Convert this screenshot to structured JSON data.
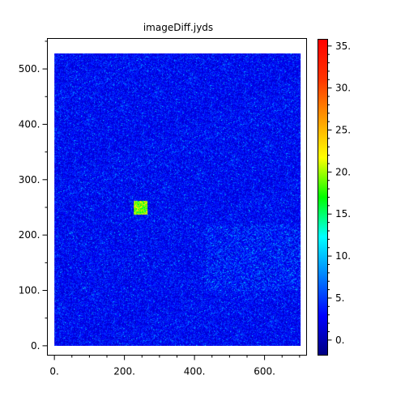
{
  "chart_data": {
    "type": "heatmap",
    "title": "imageDiff.jyds",
    "xlabel": "",
    "ylabel": "",
    "xlim": [
      -20,
      720
    ],
    "ylim": [
      -17,
      555
    ],
    "data_extent": {
      "x": [
        0,
        704
      ],
      "y": [
        0,
        528
      ]
    },
    "x_ticks": [
      {
        "value": 0,
        "label": "0."
      },
      {
        "value": 200,
        "label": "200."
      },
      {
        "value": 400,
        "label": "400."
      },
      {
        "value": 600,
        "label": "600."
      }
    ],
    "y_ticks": [
      {
        "value": 0,
        "label": "0."
      },
      {
        "value": 100,
        "label": "100."
      },
      {
        "value": 200,
        "label": "200."
      },
      {
        "value": 300,
        "label": "300."
      },
      {
        "value": 400,
        "label": "400."
      },
      {
        "value": 500,
        "label": "500."
      }
    ],
    "colorbar": {
      "range": [
        -1.8,
        35.8
      ],
      "colormap": "rainbow (blue to red)",
      "ticks": [
        {
          "value": 0,
          "label": "0."
        },
        {
          "value": 5,
          "label": "5."
        },
        {
          "value": 10,
          "label": "10."
        },
        {
          "value": 15,
          "label": "15."
        },
        {
          "value": 20,
          "label": "20."
        },
        {
          "value": 25,
          "label": "25."
        },
        {
          "value": 30,
          "label": "30."
        },
        {
          "value": 35,
          "label": "35."
        }
      ]
    },
    "background_value_range": [
      1,
      6
    ],
    "features": [
      {
        "type": "hot-spot",
        "x": [
          225,
          265
        ],
        "y": [
          237,
          262
        ],
        "value_range": [
          15,
          24
        ]
      },
      {
        "type": "noisy-band",
        "x": [
          430,
          704
        ],
        "y": [
          100,
          220
        ],
        "value_range": [
          3,
          9
        ]
      }
    ]
  }
}
